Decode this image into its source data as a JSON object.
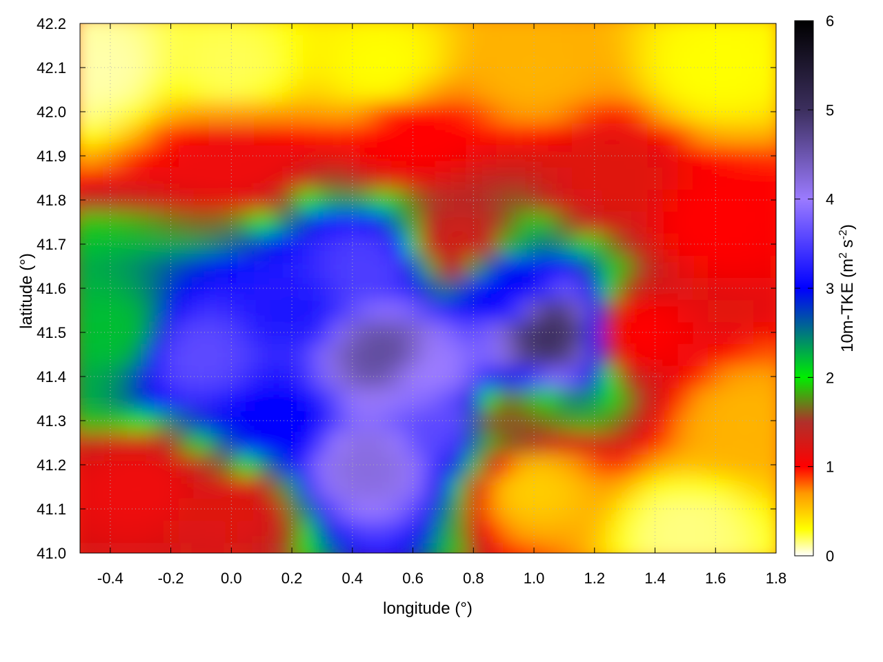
{
  "chart_data": {
    "type": "heatmap",
    "title": "",
    "xlabel": "longitude (°)",
    "ylabel": "latitude (°)",
    "xlim": [
      -0.5,
      1.8
    ],
    "ylim": [
      41.0,
      42.2
    ],
    "x_ticks": [
      -0.4,
      -0.2,
      0.0,
      0.2,
      0.4,
      0.6,
      0.8,
      1.0,
      1.2,
      1.4,
      1.6,
      1.8
    ],
    "x_tick_labels": [
      "-0.4",
      "-0.2",
      "0.0",
      "0.2",
      "0.4",
      "0.6",
      "0.8",
      "1.0",
      "1.2",
      "1.4",
      "1.6",
      "1.8"
    ],
    "y_ticks": [
      41.0,
      41.1,
      41.2,
      41.3,
      41.4,
      41.5,
      41.6,
      41.7,
      41.8,
      41.9,
      42.0,
      42.1,
      42.2
    ],
    "y_tick_labels": [
      "41.0",
      "41.1",
      "41.2",
      "41.3",
      "41.4",
      "41.5",
      "41.6",
      "41.7",
      "41.8",
      "41.9",
      "42.0",
      "42.1",
      "42.2"
    ],
    "grid": "dotted",
    "colorbar": {
      "label_prefix": "10m-TKE (m",
      "label_sup1": "2",
      "label_mid": " s",
      "label_sup2": "-2",
      "label_suffix": ")",
      "range": [
        0,
        6
      ],
      "ticks": [
        0,
        1,
        2,
        3,
        4,
        5,
        6
      ],
      "tick_labels": [
        "0",
        "1",
        "2",
        "3",
        "4",
        "5",
        "6"
      ],
      "colorscale": [
        [
          0.0,
          "#ffffff"
        ],
        [
          0.3,
          "#ffff00"
        ],
        [
          0.7,
          "#ff9900"
        ],
        [
          1.0,
          "#ff0000"
        ],
        [
          1.5,
          "#b0302a"
        ],
        [
          2.0,
          "#00ee00"
        ],
        [
          3.0,
          "#0000ff"
        ],
        [
          4.0,
          "#9b7bff"
        ],
        [
          5.0,
          "#3c2f5e"
        ],
        [
          6.0,
          "#000000"
        ]
      ]
    },
    "field_features": [
      {
        "lon": -0.45,
        "lat": 42.1,
        "value": 0.1
      },
      {
        "lon": 0.0,
        "lat": 42.1,
        "value": 0.2
      },
      {
        "lon": 0.5,
        "lat": 42.1,
        "value": 0.3
      },
      {
        "lon": 1.0,
        "lat": 42.1,
        "value": 0.6
      },
      {
        "lon": 1.6,
        "lat": 42.1,
        "value": 0.3
      },
      {
        "lon": 0.0,
        "lat": 41.9,
        "value": 1.1
      },
      {
        "lon": 0.6,
        "lat": 41.95,
        "value": 1.0
      },
      {
        "lon": 1.25,
        "lat": 41.85,
        "value": 1.2
      },
      {
        "lon": 1.6,
        "lat": 41.75,
        "value": 1.0
      },
      {
        "lon": -0.4,
        "lat": 41.5,
        "value": 2.2
      },
      {
        "lon": -0.1,
        "lat": 41.45,
        "value": 3.6
      },
      {
        "lon": 0.2,
        "lat": 41.55,
        "value": 3.2
      },
      {
        "lon": 0.45,
        "lat": 41.65,
        "value": 3.5
      },
      {
        "lon": 0.5,
        "lat": 41.45,
        "value": 4.6
      },
      {
        "lon": 0.65,
        "lat": 41.4,
        "value": 4.0
      },
      {
        "lon": 1.05,
        "lat": 41.5,
        "value": 5.0
      },
      {
        "lon": 0.9,
        "lat": 41.6,
        "value": 3.0
      },
      {
        "lon": 0.75,
        "lat": 41.7,
        "value": 1.3
      },
      {
        "lon": 1.35,
        "lat": 41.5,
        "value": 1.0
      },
      {
        "lon": 0.45,
        "lat": 41.2,
        "value": 4.2
      },
      {
        "lon": 0.7,
        "lat": 41.3,
        "value": 3.6
      },
      {
        "lon": 0.15,
        "lat": 41.3,
        "value": 3.0
      },
      {
        "lon": -0.3,
        "lat": 41.15,
        "value": 1.1
      },
      {
        "lon": 0.0,
        "lat": 41.1,
        "value": 1.2
      },
      {
        "lon": 1.0,
        "lat": 41.15,
        "value": 0.5
      },
      {
        "lon": 1.5,
        "lat": 41.05,
        "value": 0.15
      },
      {
        "lon": 1.7,
        "lat": 41.3,
        "value": 0.6
      },
      {
        "lon": 0.9,
        "lat": 41.3,
        "value": 1.6
      }
    ]
  }
}
